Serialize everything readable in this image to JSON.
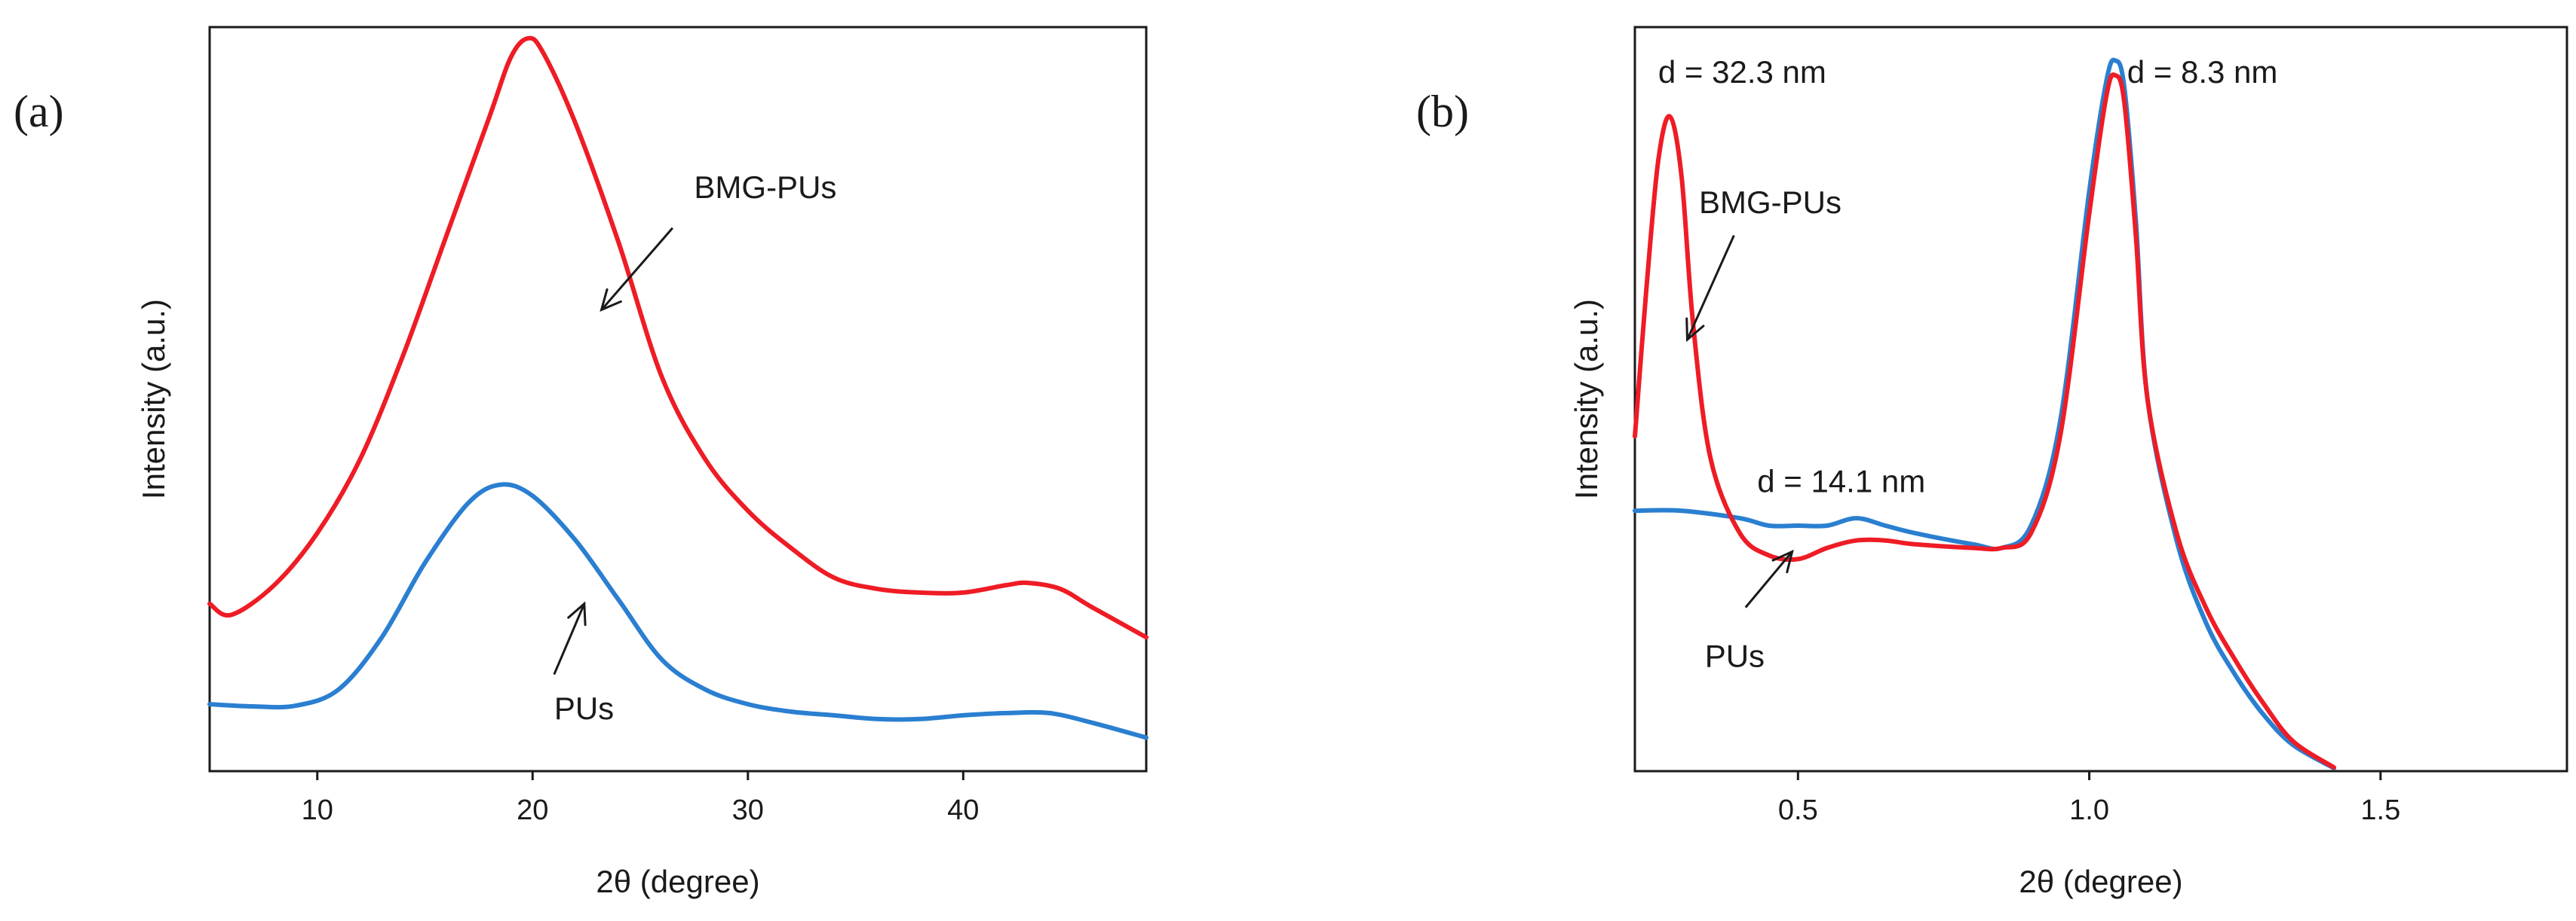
{
  "chart_data": [
    {
      "panel": "(a)",
      "type": "line",
      "xlabel": "2θ (degree)",
      "ylabel": "Intensity (a.u.)",
      "xlim": [
        5,
        48.5
      ],
      "ylim": [
        0,
        1
      ],
      "xticks": [
        10,
        20,
        30,
        40
      ],
      "ytick_labels": false,
      "grid": false,
      "series": [
        {
          "name": "BMG-PUs",
          "color": "#ee1c25",
          "points": [
            [
              5,
              0.225
            ],
            [
              6,
              0.21
            ],
            [
              8,
              0.25
            ],
            [
              10,
              0.32
            ],
            [
              12,
              0.42
            ],
            [
              14,
              0.56
            ],
            [
              16,
              0.72
            ],
            [
              18,
              0.88
            ],
            [
              19,
              0.96
            ],
            [
              19.8,
              0.985
            ],
            [
              20.5,
              0.965
            ],
            [
              22,
              0.87
            ],
            [
              24,
              0.71
            ],
            [
              26,
              0.53
            ],
            [
              28,
              0.42
            ],
            [
              30,
              0.35
            ],
            [
              32,
              0.3
            ],
            [
              34,
              0.26
            ],
            [
              36,
              0.245
            ],
            [
              38,
              0.24
            ],
            [
              40,
              0.24
            ],
            [
              42,
              0.25
            ],
            [
              43,
              0.253
            ],
            [
              44.5,
              0.245
            ],
            [
              46,
              0.22
            ],
            [
              48.5,
              0.18
            ]
          ]
        },
        {
          "name": "PUs",
          "color": "#2a7fd0",
          "points": [
            [
              5,
              0.09
            ],
            [
              7,
              0.087
            ],
            [
              9,
              0.088
            ],
            [
              11,
              0.11
            ],
            [
              13,
              0.18
            ],
            [
              15,
              0.28
            ],
            [
              17,
              0.36
            ],
            [
              18.5,
              0.385
            ],
            [
              20,
              0.37
            ],
            [
              22,
              0.31
            ],
            [
              24,
              0.23
            ],
            [
              26,
              0.15
            ],
            [
              28,
              0.11
            ],
            [
              30,
              0.09
            ],
            [
              32,
              0.08
            ],
            [
              34,
              0.075
            ],
            [
              36,
              0.07
            ],
            [
              38,
              0.07
            ],
            [
              40,
              0.075
            ],
            [
              42,
              0.078
            ],
            [
              44,
              0.078
            ],
            [
              46,
              0.065
            ],
            [
              48.5,
              0.045
            ]
          ]
        }
      ],
      "annotations": [
        {
          "text": "BMG-PUs",
          "x": 27.5,
          "y": 0.77,
          "arrow_from": [
            26.5,
            0.73
          ],
          "arrow_to": [
            23.2,
            0.62
          ]
        },
        {
          "text": "PUs",
          "x": 21.0,
          "y": 0.07,
          "arrow_from": [
            21.0,
            0.13
          ],
          "arrow_to": [
            22.4,
            0.225
          ]
        }
      ]
    },
    {
      "panel": "(b)",
      "type": "line",
      "xlabel": "2θ (degree)",
      "ylabel": "Intensity (a.u.)",
      "xlim": [
        0.22,
        1.82
      ],
      "ylim": [
        0,
        1
      ],
      "xticks": [
        0.5,
        1.0,
        1.5
      ],
      "xtick_labels": [
        "0.5",
        "1.0",
        "1.5"
      ],
      "ytick_labels": false,
      "grid": false,
      "series": [
        {
          "name": "BMG-PUs",
          "color": "#ee1c25",
          "points": [
            [
              0.22,
              0.45
            ],
            [
              0.24,
              0.65
            ],
            [
              0.26,
              0.82
            ],
            [
              0.28,
              0.88
            ],
            [
              0.3,
              0.8
            ],
            [
              0.32,
              0.6
            ],
            [
              0.35,
              0.42
            ],
            [
              0.4,
              0.32
            ],
            [
              0.45,
              0.29
            ],
            [
              0.5,
              0.285
            ],
            [
              0.55,
              0.3
            ],
            [
              0.6,
              0.31
            ],
            [
              0.65,
              0.31
            ],
            [
              0.7,
              0.305
            ],
            [
              0.8,
              0.3
            ],
            [
              0.85,
              0.3
            ],
            [
              0.9,
              0.32
            ],
            [
              0.95,
              0.45
            ],
            [
              1.0,
              0.75
            ],
            [
              1.03,
              0.91
            ],
            [
              1.045,
              0.935
            ],
            [
              1.06,
              0.9
            ],
            [
              1.08,
              0.72
            ],
            [
              1.1,
              0.5
            ],
            [
              1.15,
              0.32
            ],
            [
              1.2,
              0.22
            ],
            [
              1.25,
              0.15
            ],
            [
              1.3,
              0.09
            ],
            [
              1.35,
              0.04
            ],
            [
              1.42,
              0.005
            ]
          ]
        },
        {
          "name": "PUs",
          "color": "#2a7fd0",
          "points": [
            [
              0.22,
              0.35
            ],
            [
              0.3,
              0.35
            ],
            [
              0.4,
              0.34
            ],
            [
              0.45,
              0.33
            ],
            [
              0.5,
              0.33
            ],
            [
              0.55,
              0.33
            ],
            [
              0.6,
              0.34
            ],
            [
              0.65,
              0.33
            ],
            [
              0.7,
              0.32
            ],
            [
              0.8,
              0.305
            ],
            [
              0.85,
              0.3
            ],
            [
              0.9,
              0.33
            ],
            [
              0.95,
              0.47
            ],
            [
              1.0,
              0.78
            ],
            [
              1.03,
              0.93
            ],
            [
              1.045,
              0.955
            ],
            [
              1.06,
              0.92
            ],
            [
              1.08,
              0.74
            ],
            [
              1.1,
              0.5
            ],
            [
              1.15,
              0.31
            ],
            [
              1.2,
              0.2
            ],
            [
              1.25,
              0.13
            ],
            [
              1.3,
              0.075
            ],
            [
              1.35,
              0.035
            ],
            [
              1.42,
              0.004
            ]
          ]
        }
      ],
      "annotations": [
        {
          "text": "d = 32.3 nm",
          "x": 0.26,
          "y": 0.925
        },
        {
          "text": "d = 8.3 nm",
          "x": 1.065,
          "y": 0.925
        },
        {
          "text": "BMG-PUs",
          "x": 0.33,
          "y": 0.75,
          "arrow_from": [
            0.39,
            0.72
          ],
          "arrow_to": [
            0.31,
            0.58
          ]
        },
        {
          "text": "d = 14.1 nm",
          "x": 0.43,
          "y": 0.375
        },
        {
          "text": "PUs",
          "x": 0.34,
          "y": 0.14,
          "arrow_from": [
            0.41,
            0.22
          ],
          "arrow_to": [
            0.49,
            0.295
          ]
        }
      ]
    }
  ]
}
